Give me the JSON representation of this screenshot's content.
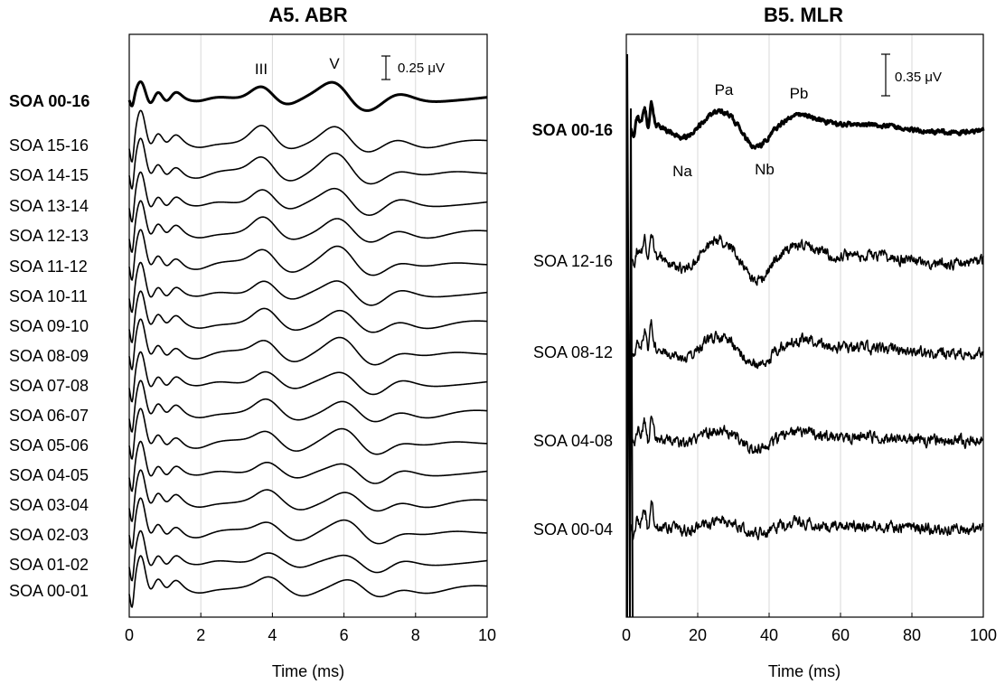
{
  "chart_data": [
    {
      "type": "line",
      "title": "A5. ABR",
      "xlabel": "Time (ms)",
      "xlim": [
        0,
        10
      ],
      "xticks": [
        0,
        2,
        4,
        6,
        8,
        10
      ],
      "grid": true,
      "scale_bar": "0.25 μV",
      "peak_labels": [
        "III",
        "V"
      ],
      "series": [
        {
          "name": "SOA 00-16",
          "bold": true
        },
        {
          "name": "SOA 15-16"
        },
        {
          "name": "SOA 14-15"
        },
        {
          "name": "SOA 13-14"
        },
        {
          "name": "SOA 12-13"
        },
        {
          "name": "SOA 11-12"
        },
        {
          "name": "SOA 10-11"
        },
        {
          "name": "SOA 09-10"
        },
        {
          "name": "SOA 08-09"
        },
        {
          "name": "SOA 07-08"
        },
        {
          "name": "SOA 06-07"
        },
        {
          "name": "SOA 05-06"
        },
        {
          "name": "SOA 04-05"
        },
        {
          "name": "SOA 03-04"
        },
        {
          "name": "SOA 02-03"
        },
        {
          "name": "SOA 01-02"
        },
        {
          "name": "SOA 00-01"
        }
      ]
    },
    {
      "type": "line",
      "title": "B5. MLR",
      "xlabel": "Time (ms)",
      "xlim": [
        0,
        100
      ],
      "xticks": [
        0,
        20,
        40,
        60,
        80,
        100
      ],
      "grid": true,
      "scale_bar": "0.35 μV",
      "peak_labels": [
        "Pa",
        "Pb",
        "Na",
        "Nb"
      ],
      "series": [
        {
          "name": "SOA 00-16",
          "bold": true
        },
        {
          "name": "SOA 12-16"
        },
        {
          "name": "SOA 08-12"
        },
        {
          "name": "SOA 04-08"
        },
        {
          "name": "SOA 00-04"
        }
      ]
    }
  ]
}
